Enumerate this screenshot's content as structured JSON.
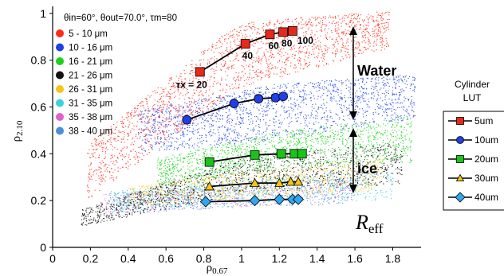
{
  "chart_data": {
    "type": "scatter",
    "xlabel_base": "ρ",
    "xlabel_sub": "0.67",
    "ylabel_base": "ρ",
    "ylabel_sub": "2.10",
    "xlim": [
      0,
      1.95
    ],
    "ylim": [
      0,
      1.03
    ],
    "x_ticks": [
      "0",
      "0.2",
      "0.4",
      "0.6",
      "0.8",
      "1",
      "1.2",
      "1.4",
      "1.6",
      "1.8"
    ],
    "y_ticks": [
      "0",
      "0.2",
      "0.4",
      "0.6",
      "0.8",
      "1"
    ],
    "x_tick_values": [
      0,
      0.2,
      0.4,
      0.6,
      0.8,
      1.0,
      1.2,
      1.4,
      1.6,
      1.8
    ],
    "y_tick_values": [
      0,
      0.2,
      0.4,
      0.6,
      0.8,
      1.0
    ],
    "conditions": {
      "theta_in": "θin=60°,",
      "theta_out": "θout=70.0°,",
      "tau_m": "τm=80"
    },
    "scatter_legend": [
      {
        "label": "5 - 10 μm",
        "color": "#ff2a1a"
      },
      {
        "label": "10 - 16 μm",
        "color": "#1f3fe8"
      },
      {
        "label": "16 - 21 μm",
        "color": "#19d419"
      },
      {
        "label": "21 - 26 μm",
        "color": "#111111"
      },
      {
        "label": "26 - 31 μm",
        "color": "#f5c518"
      },
      {
        "label": "31 - 35 μm",
        "color": "#39d3e0"
      },
      {
        "label": "35 - 38 μm",
        "color": "#e060d0"
      },
      {
        "label": "38 - 40 μm",
        "color": "#4a90d9"
      }
    ],
    "lut_title": [
      "Cylinder",
      "LUT"
    ],
    "lut_series": [
      {
        "name": "5um",
        "marker": "square",
        "color": "#e8281a",
        "x": [
          0.78,
          1.02,
          1.15,
          1.22,
          1.27
        ],
        "y": [
          0.75,
          0.87,
          0.91,
          0.92,
          0.925
        ]
      },
      {
        "name": "10um",
        "marker": "circle",
        "color": "#1f3fe8",
        "x": [
          0.71,
          0.96,
          1.09,
          1.18,
          1.22
        ],
        "y": [
          0.545,
          0.615,
          0.635,
          0.64,
          0.645
        ]
      },
      {
        "name": "20um",
        "marker": "square",
        "color": "#19c419",
        "x": [
          0.83,
          1.07,
          1.21,
          1.28,
          1.32
        ],
        "y": [
          0.365,
          0.395,
          0.4,
          0.4,
          0.4
        ]
      },
      {
        "name": "30um",
        "marker": "triangle",
        "color": "#f5c518",
        "x": [
          0.83,
          1.07,
          1.2,
          1.26,
          1.3
        ],
        "y": [
          0.26,
          0.275,
          0.275,
          0.28,
          0.28
        ]
      },
      {
        "name": "40um",
        "marker": "diamond",
        "color": "#2fa8f0",
        "x": [
          0.81,
          1.07,
          1.2,
          1.27,
          1.3
        ],
        "y": [
          0.195,
          0.2,
          0.205,
          0.205,
          0.205
        ]
      }
    ],
    "tau_labels": [
      "τx = 20",
      "40",
      "60",
      "80",
      "100"
    ],
    "annotations": {
      "water": "Water",
      "ice": "ice",
      "reff_base": "R",
      "reff_sub": "eff"
    }
  }
}
